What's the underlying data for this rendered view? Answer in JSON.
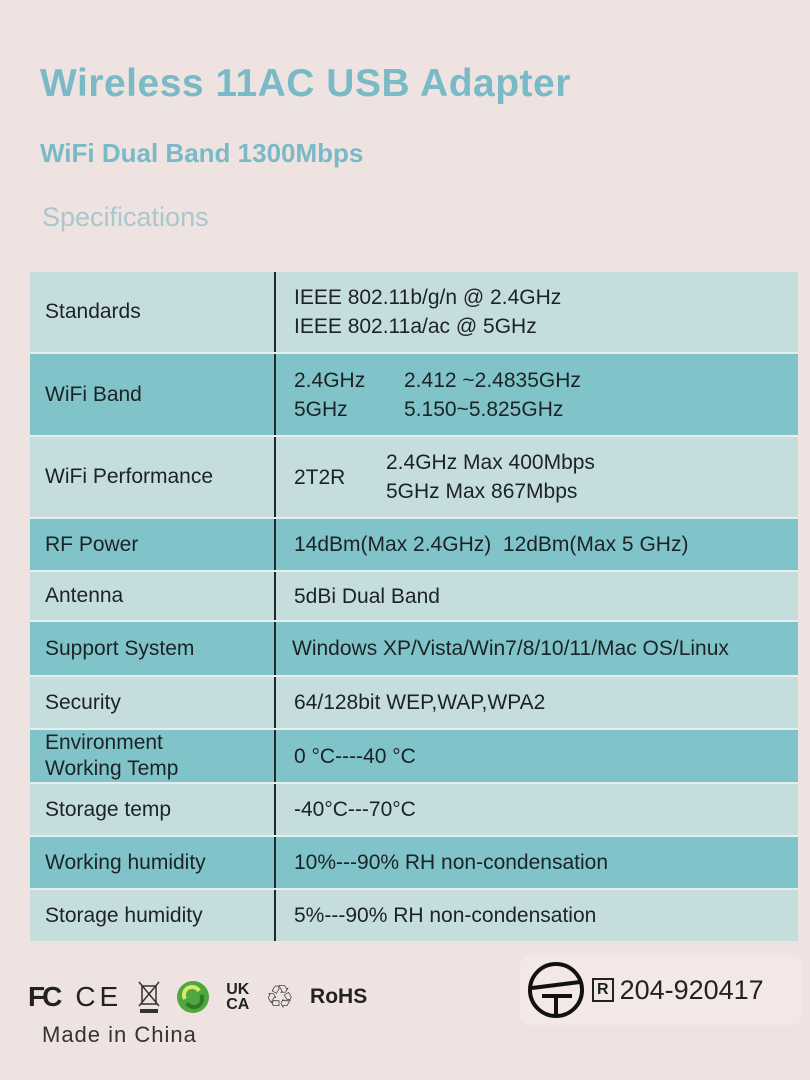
{
  "header": {
    "title": "Wireless 11AC USB Adapter",
    "subtitle": "WiFi Dual Band 1300Mbps",
    "section": "Specifications"
  },
  "specs": [
    {
      "label": "Standards",
      "lines": [
        "IEEE 802.11b/g/n @ 2.4GHz",
        "IEEE 802.11a/ac @ 5GHz"
      ]
    },
    {
      "label": "WiFi Band",
      "bands": [
        [
          "2.4GHz",
          "2.412 ~2.4835GHz"
        ],
        [
          "5GHz",
          "5.150~5.825GHz"
        ]
      ]
    },
    {
      "label": "WiFi Performance",
      "key": "2T2R",
      "lines": [
        "2.4GHz Max 400Mbps",
        "5GHz Max 867Mbps"
      ]
    },
    {
      "label": "RF Power",
      "value": "14dBm(Max 2.4GHz)  12dBm(Max 5 GHz)"
    },
    {
      "label": "Antenna",
      "value": "5dBi Dual Band"
    },
    {
      "label": "Support System",
      "value": "Windows XP/Vista/Win7/8/10/11/Mac OS/Linux"
    },
    {
      "label": "Security",
      "value": "64/128bit WEP,WAP,WPA2"
    },
    {
      "label": "Environment Working Temp",
      "labelLines": [
        "Environment",
        "Working Temp"
      ],
      "value": "0 °C----40 °C"
    },
    {
      "label": "Storage temp",
      "value": "-40°C---70°C"
    },
    {
      "label": "Working humidity",
      "value": "10%---90% RH non-condensation"
    },
    {
      "label": "Storage humidity",
      "value": "5%---90% RH non-condensation"
    }
  ],
  "footer": {
    "logos": {
      "fcc": "FC",
      "ce": "CE",
      "ukca_top": "UK",
      "ukca_bottom": "CA",
      "rohs": "RoHS"
    },
    "made_in": "Made in China",
    "cert_mark": "R",
    "cert_number": "204-920417"
  }
}
